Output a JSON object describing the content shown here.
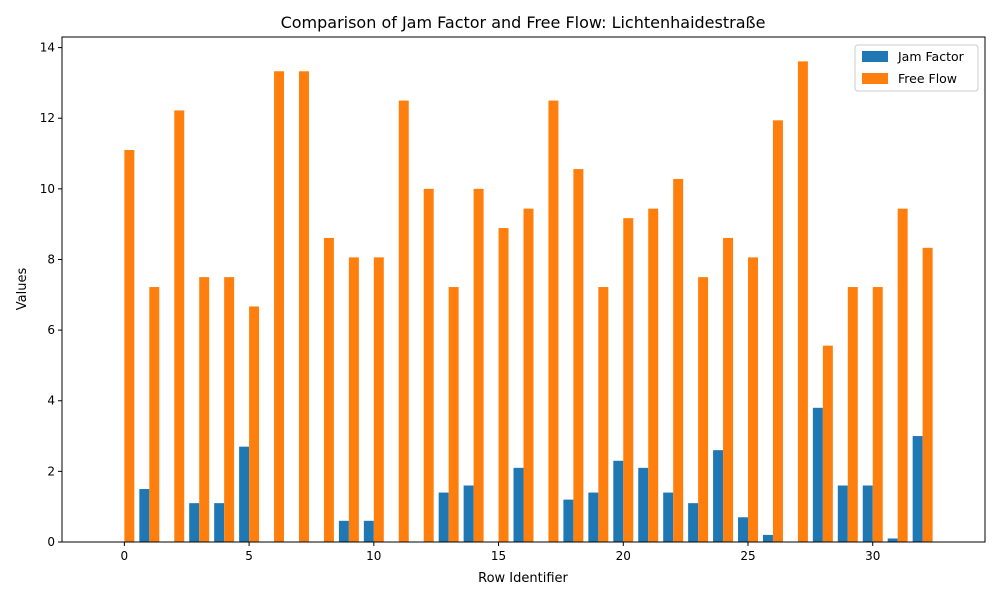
{
  "chart_data": {
    "type": "bar",
    "title": "Comparison of Jam Factor and Free Flow: Lichtenhaidestraße",
    "xlabel": "Row Identifier",
    "ylabel": "Values",
    "xlim": [
      -2.5,
      34.5
    ],
    "ylim": [
      0,
      14.3
    ],
    "x_ticks": [
      0,
      5,
      10,
      15,
      20,
      25,
      30
    ],
    "y_ticks": [
      0,
      2,
      4,
      6,
      8,
      10,
      12,
      14
    ],
    "legend_position": "top-right",
    "grid": false,
    "x": [
      0,
      1,
      2,
      3,
      4,
      5,
      6,
      7,
      8,
      9,
      10,
      11,
      12,
      13,
      14,
      15,
      16,
      17,
      18,
      19,
      20,
      21,
      22,
      23,
      24,
      25,
      26,
      27,
      28,
      29,
      30,
      31,
      32
    ],
    "series": [
      {
        "name": "Jam Factor",
        "color": "#1f77b4",
        "values": [
          0.0,
          1.5,
          0.0,
          1.1,
          1.1,
          2.7,
          0.0,
          0.0,
          0.0,
          0.6,
          0.6,
          0.0,
          0.0,
          1.4,
          1.6,
          0.0,
          2.1,
          0.0,
          1.2,
          1.4,
          2.3,
          2.1,
          1.4,
          1.1,
          2.6,
          0.7,
          0.2,
          0.0,
          3.8,
          1.6,
          1.6,
          0.1,
          3.0
        ]
      },
      {
        "name": "Free Flow",
        "color": "#ff7f0e",
        "values": [
          11.1,
          7.22,
          12.22,
          7.5,
          7.5,
          6.67,
          13.33,
          13.33,
          8.61,
          8.06,
          8.06,
          12.5,
          10.0,
          7.22,
          10.0,
          8.89,
          9.44,
          12.5,
          10.56,
          7.22,
          9.17,
          9.44,
          10.28,
          7.5,
          8.61,
          8.06,
          11.94,
          13.61,
          5.56,
          7.22,
          7.22,
          9.44,
          8.33
        ]
      }
    ]
  }
}
